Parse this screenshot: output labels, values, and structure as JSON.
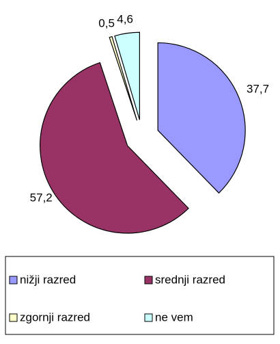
{
  "chart_data": {
    "type": "pie",
    "categories": [
      "nižji razred",
      "srednji razred",
      "zgornji razred",
      "ne vem"
    ],
    "values": [
      37.7,
      57.2,
      0.5,
      4.6
    ],
    "value_labels": [
      "37,7",
      "57,2",
      "0,5",
      "4,6"
    ],
    "colors": [
      "#9999ff",
      "#993366",
      "#ffffcc",
      "#ccffff"
    ],
    "legend": "bottom"
  }
}
